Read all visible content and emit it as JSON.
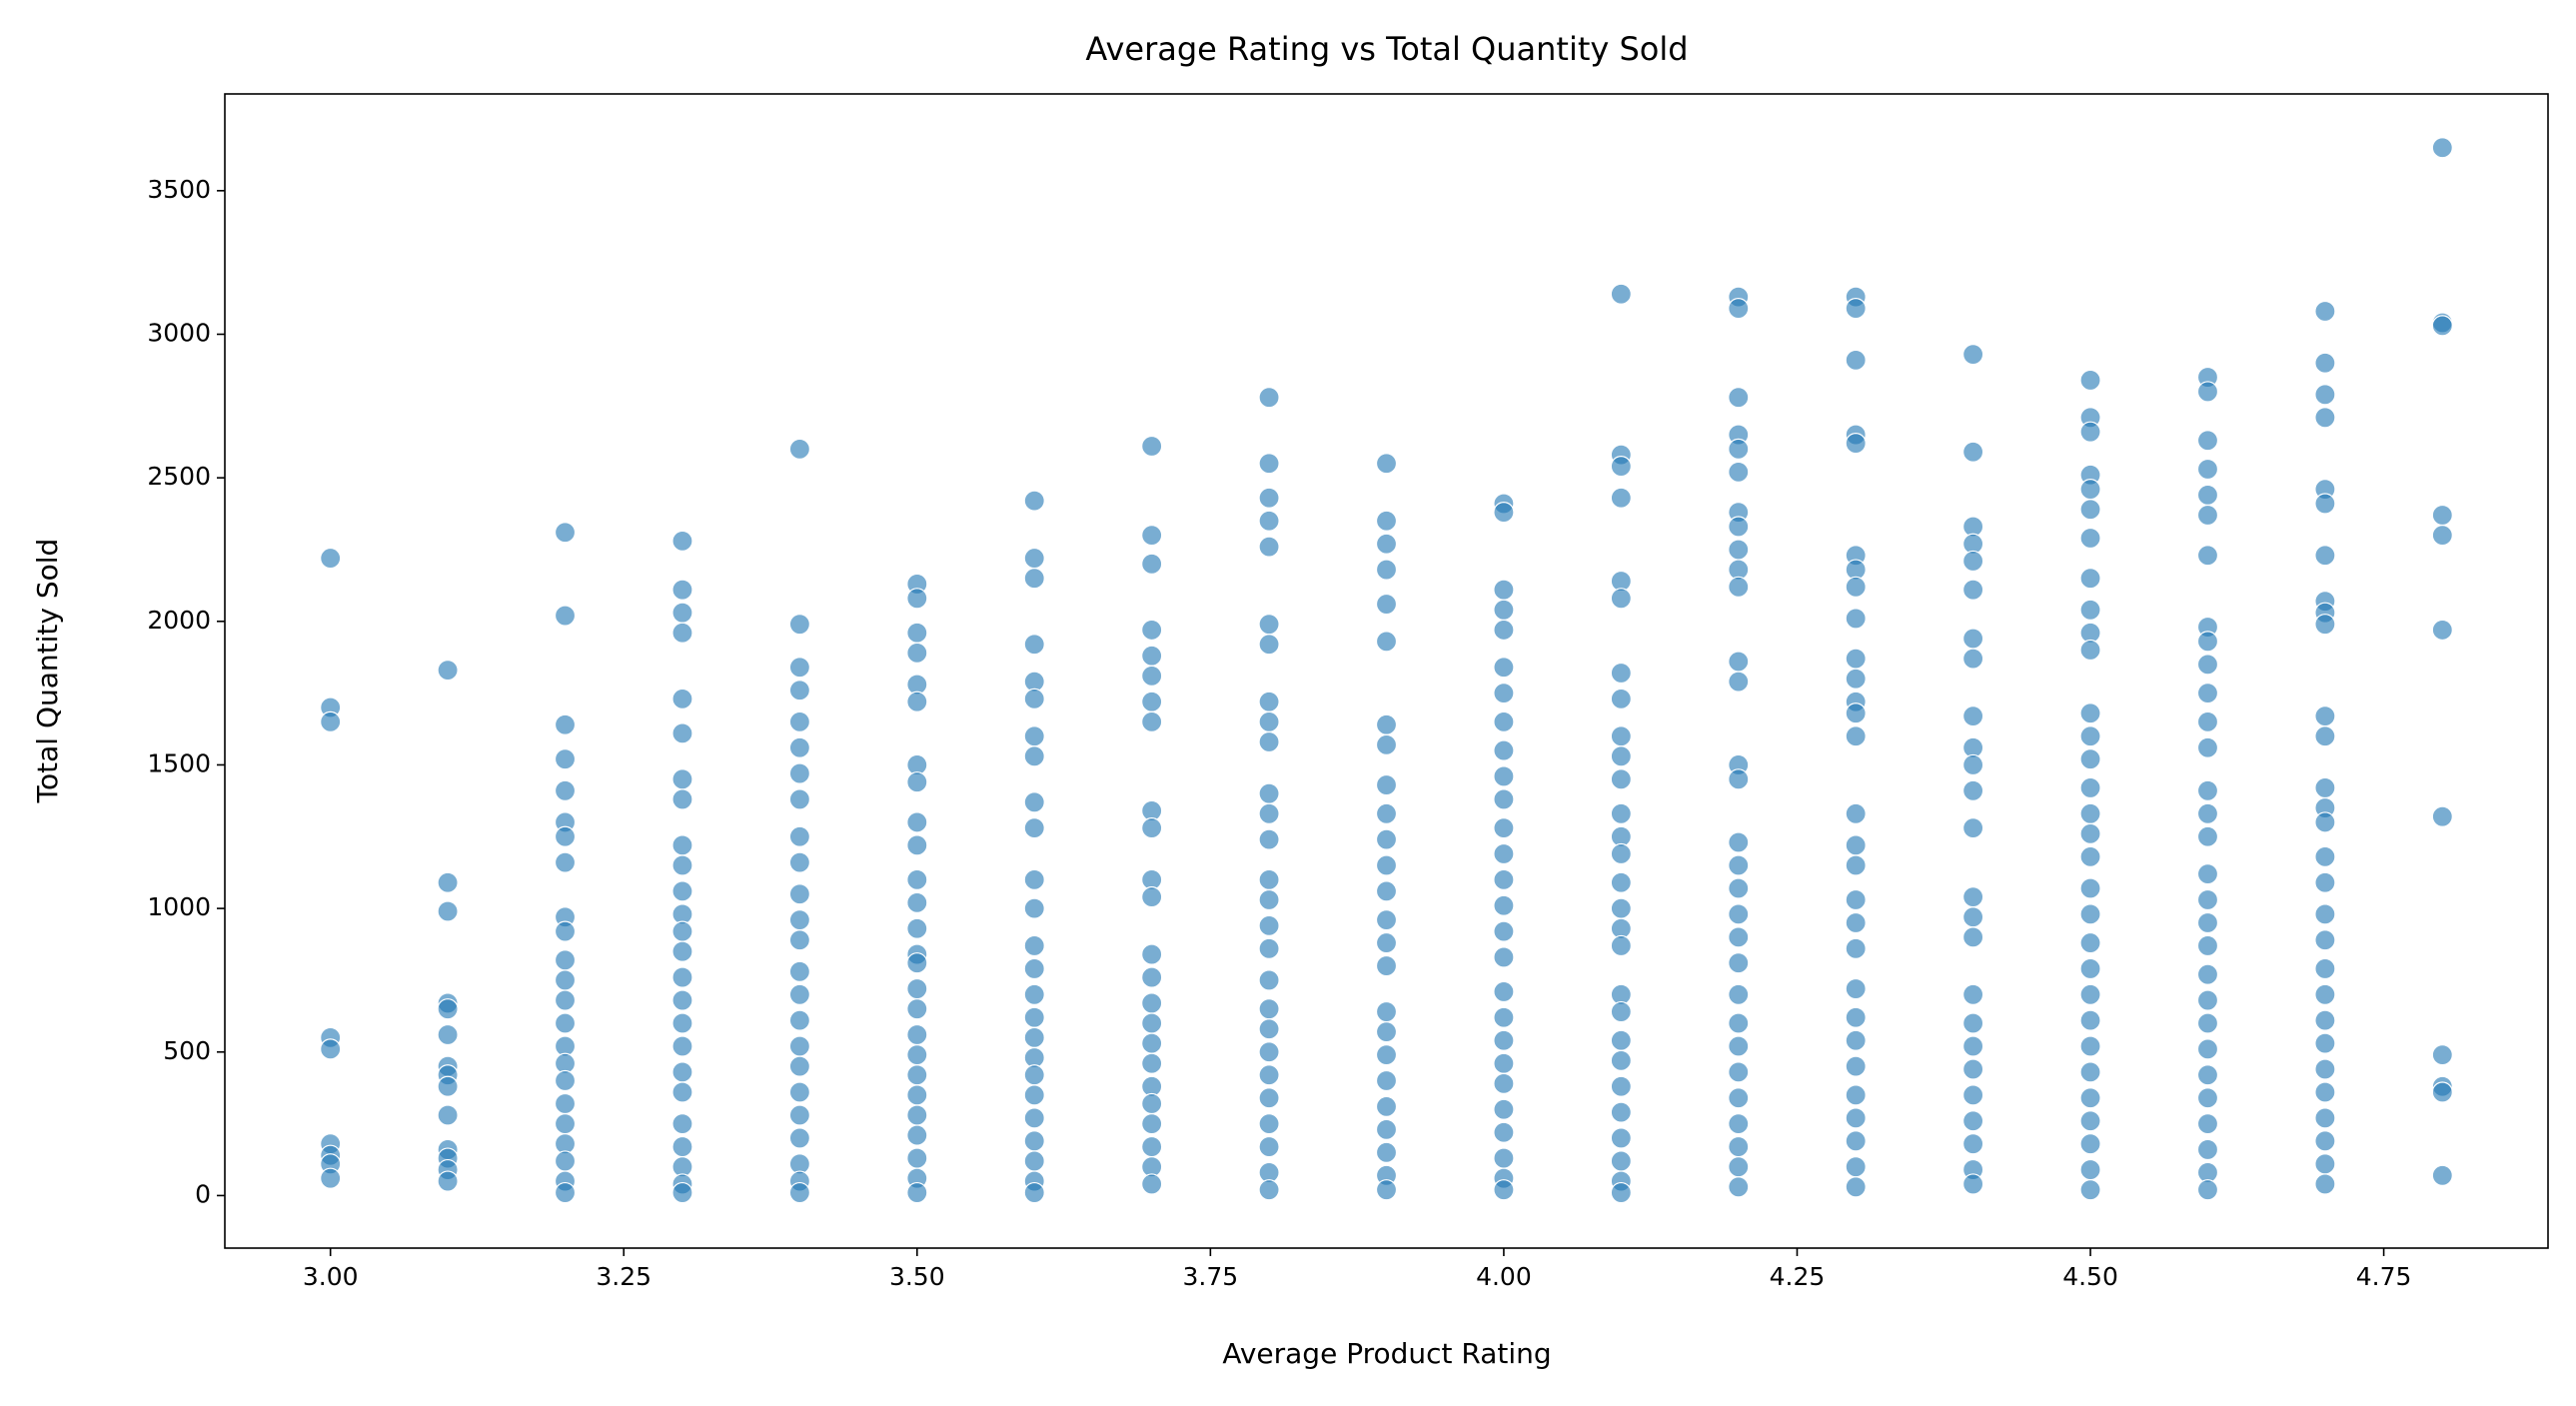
{
  "chart_data": {
    "type": "scatter",
    "title": "Average Rating vs Total Quantity Sold",
    "x_label": "Average Product Rating",
    "y_label": "Total Quantity Sold",
    "color": "#1f77b4",
    "xlim": [
      2.91,
      4.89
    ],
    "ylim": [
      -183,
      3837
    ],
    "xticks": [
      {
        "value": 3.0,
        "label": "3.00"
      },
      {
        "value": 3.25,
        "label": "3.25"
      },
      {
        "value": 3.5,
        "label": "3.50"
      },
      {
        "value": 3.75,
        "label": "3.75"
      },
      {
        "value": 4.0,
        "label": "4.00"
      },
      {
        "value": 4.25,
        "label": "4.25"
      },
      {
        "value": 4.5,
        "label": "4.50"
      },
      {
        "value": 4.75,
        "label": "4.75"
      }
    ],
    "yticks": [
      0,
      500,
      1000,
      1500,
      2000,
      2500,
      3000,
      3500
    ],
    "x": [
      3.0,
      3.0,
      3.0,
      3.0,
      3.0,
      3.0,
      3.0,
      3.0,
      3.0,
      3.1,
      3.1,
      3.1,
      3.1,
      3.1,
      3.1,
      3.1,
      3.1,
      3.1,
      3.1,
      3.1,
      3.1,
      3.1,
      3.1,
      3.2,
      3.2,
      3.2,
      3.2,
      3.2,
      3.2,
      3.2,
      3.2,
      3.2,
      3.2,
      3.2,
      3.2,
      3.2,
      3.2,
      3.2,
      3.2,
      3.2,
      3.2,
      3.2,
      3.2,
      3.2,
      3.2,
      3.2,
      3.3,
      3.3,
      3.3,
      3.3,
      3.3,
      3.3,
      3.3,
      3.3,
      3.3,
      3.3,
      3.3,
      3.3,
      3.3,
      3.3,
      3.3,
      3.3,
      3.3,
      3.3,
      3.3,
      3.3,
      3.3,
      3.3,
      3.3,
      3.3,
      3.3,
      3.4,
      3.4,
      3.4,
      3.4,
      3.4,
      3.4,
      3.4,
      3.4,
      3.4,
      3.4,
      3.4,
      3.4,
      3.4,
      3.4,
      3.4,
      3.4,
      3.4,
      3.4,
      3.4,
      3.4,
      3.4,
      3.4,
      3.4,
      3.4,
      3.5,
      3.5,
      3.5,
      3.5,
      3.5,
      3.5,
      3.5,
      3.5,
      3.5,
      3.5,
      3.5,
      3.5,
      3.5,
      3.5,
      3.5,
      3.5,
      3.5,
      3.5,
      3.5,
      3.5,
      3.5,
      3.5,
      3.5,
      3.5,
      3.5,
      3.5,
      3.6,
      3.6,
      3.6,
      3.6,
      3.6,
      3.6,
      3.6,
      3.6,
      3.6,
      3.6,
      3.6,
      3.6,
      3.6,
      3.6,
      3.6,
      3.6,
      3.6,
      3.6,
      3.6,
      3.6,
      3.6,
      3.6,
      3.6,
      3.6,
      3.6,
      3.7,
      3.7,
      3.7,
      3.7,
      3.7,
      3.7,
      3.7,
      3.7,
      3.7,
      3.7,
      3.7,
      3.7,
      3.7,
      3.7,
      3.7,
      3.7,
      3.7,
      3.7,
      3.7,
      3.7,
      3.7,
      3.7,
      3.7,
      3.7,
      3.8,
      3.8,
      3.8,
      3.8,
      3.8,
      3.8,
      3.8,
      3.8,
      3.8,
      3.8,
      3.8,
      3.8,
      3.8,
      3.8,
      3.8,
      3.8,
      3.8,
      3.8,
      3.8,
      3.8,
      3.8,
      3.8,
      3.8,
      3.8,
      3.8,
      3.8,
      3.8,
      3.9,
      3.9,
      3.9,
      3.9,
      3.9,
      3.9,
      3.9,
      3.9,
      3.9,
      3.9,
      3.9,
      3.9,
      3.9,
      3.9,
      3.9,
      3.9,
      3.9,
      3.9,
      3.9,
      3.9,
      3.9,
      3.9,
      3.9,
      3.9,
      3.9,
      4.0,
      4.0,
      4.0,
      4.0,
      4.0,
      4.0,
      4.0,
      4.0,
      4.0,
      4.0,
      4.0,
      4.0,
      4.0,
      4.0,
      4.0,
      4.0,
      4.0,
      4.0,
      4.0,
      4.0,
      4.0,
      4.0,
      4.0,
      4.0,
      4.0,
      4.0,
      4.0,
      4.1,
      4.1,
      4.1,
      4.1,
      4.1,
      4.1,
      4.1,
      4.1,
      4.1,
      4.1,
      4.1,
      4.1,
      4.1,
      4.1,
      4.1,
      4.1,
      4.1,
      4.1,
      4.1,
      4.1,
      4.1,
      4.1,
      4.1,
      4.1,
      4.1,
      4.1,
      4.1,
      4.1,
      4.2,
      4.2,
      4.2,
      4.2,
      4.2,
      4.2,
      4.2,
      4.2,
      4.2,
      4.2,
      4.2,
      4.2,
      4.2,
      4.2,
      4.2,
      4.2,
      4.2,
      4.2,
      4.2,
      4.2,
      4.2,
      4.2,
      4.2,
      4.2,
      4.2,
      4.2,
      4.2,
      4.2,
      4.2,
      4.2,
      4.3,
      4.3,
      4.3,
      4.3,
      4.3,
      4.3,
      4.3,
      4.3,
      4.3,
      4.3,
      4.3,
      4.3,
      4.3,
      4.3,
      4.3,
      4.3,
      4.3,
      4.3,
      4.3,
      4.3,
      4.3,
      4.3,
      4.3,
      4.3,
      4.3,
      4.3,
      4.3,
      4.3,
      4.3,
      4.4,
      4.4,
      4.4,
      4.4,
      4.4,
      4.4,
      4.4,
      4.4,
      4.4,
      4.4,
      4.4,
      4.4,
      4.4,
      4.4,
      4.4,
      4.4,
      4.4,
      4.4,
      4.4,
      4.4,
      4.4,
      4.4,
      4.4,
      4.4,
      4.4,
      4.5,
      4.5,
      4.5,
      4.5,
      4.5,
      4.5,
      4.5,
      4.5,
      4.5,
      4.5,
      4.5,
      4.5,
      4.5,
      4.5,
      4.5,
      4.5,
      4.5,
      4.5,
      4.5,
      4.5,
      4.5,
      4.5,
      4.5,
      4.5,
      4.5,
      4.5,
      4.5,
      4.5,
      4.5,
      4.5,
      4.5,
      4.6,
      4.6,
      4.6,
      4.6,
      4.6,
      4.6,
      4.6,
      4.6,
      4.6,
      4.6,
      4.6,
      4.6,
      4.6,
      4.6,
      4.6,
      4.6,
      4.6,
      4.6,
      4.6,
      4.6,
      4.6,
      4.6,
      4.6,
      4.6,
      4.6,
      4.6,
      4.6,
      4.6,
      4.6,
      4.6,
      4.7,
      4.7,
      4.7,
      4.7,
      4.7,
      4.7,
      4.7,
      4.7,
      4.7,
      4.7,
      4.7,
      4.7,
      4.7,
      4.7,
      4.7,
      4.7,
      4.7,
      4.7,
      4.7,
      4.7,
      4.7,
      4.7,
      4.7,
      4.7,
      4.7,
      4.7,
      4.7,
      4.7,
      4.7,
      4.8,
      4.8,
      4.8,
      4.8,
      4.8,
      4.8,
      4.8,
      4.8,
      4.8,
      4.8,
      4.8
    ],
    "y": [
      2220,
      1700,
      1650,
      550,
      510,
      180,
      140,
      110,
      60,
      1830,
      1090,
      990,
      670,
      650,
      560,
      450,
      420,
      380,
      280,
      160,
      130,
      90,
      50,
      2310,
      2020,
      1640,
      1520,
      1410,
      1300,
      1250,
      1160,
      970,
      920,
      820,
      750,
      680,
      600,
      520,
      460,
      400,
      320,
      250,
      180,
      120,
      50,
      10,
      2280,
      2110,
      2030,
      1960,
      1730,
      1610,
      1450,
      1380,
      1220,
      1150,
      1060,
      980,
      920,
      850,
      760,
      680,
      600,
      520,
      430,
      360,
      250,
      170,
      100,
      40,
      10,
      2600,
      1990,
      1840,
      1760,
      1650,
      1560,
      1470,
      1380,
      1250,
      1160,
      1050,
      960,
      890,
      780,
      700,
      610,
      520,
      450,
      360,
      280,
      200,
      110,
      50,
      10,
      2130,
      2080,
      1960,
      1890,
      1780,
      1720,
      1500,
      1440,
      1300,
      1220,
      1100,
      1020,
      930,
      840,
      810,
      720,
      650,
      560,
      490,
      420,
      350,
      280,
      210,
      130,
      60,
      10,
      2420,
      2220,
      2150,
      1920,
      1790,
      1730,
      1600,
      1530,
      1370,
      1280,
      1100,
      1000,
      870,
      790,
      700,
      620,
      550,
      480,
      420,
      350,
      270,
      190,
      120,
      50,
      10,
      2610,
      2300,
      2200,
      1970,
      1880,
      1810,
      1720,
      1650,
      1340,
      1280,
      1100,
      1040,
      840,
      760,
      670,
      600,
      530,
      460,
      380,
      320,
      250,
      170,
      100,
      40,
      2780,
      2550,
      2430,
      2350,
      2260,
      1990,
      1920,
      1720,
      1650,
      1580,
      1400,
      1330,
      1240,
      1100,
      1030,
      940,
      860,
      750,
      650,
      580,
      500,
      420,
      340,
      250,
      170,
      80,
      20,
      2550,
      2350,
      2270,
      2180,
      2060,
      1930,
      1640,
      1570,
      1430,
      1330,
      1240,
      1150,
      1060,
      960,
      880,
      800,
      640,
      570,
      490,
      400,
      310,
      230,
      150,
      70,
      20,
      2410,
      2380,
      2110,
      2040,
      1970,
      1840,
      1750,
      1650,
      1550,
      1460,
      1380,
      1280,
      1190,
      1100,
      1010,
      920,
      830,
      710,
      620,
      540,
      460,
      390,
      300,
      220,
      130,
      60,
      20,
      3140,
      2580,
      2540,
      2430,
      2140,
      2080,
      1820,
      1730,
      1600,
      1530,
      1450,
      1330,
      1250,
      1190,
      1090,
      1000,
      930,
      870,
      700,
      640,
      540,
      470,
      380,
      290,
      200,
      120,
      50,
      10,
      3130,
      3090,
      2780,
      2650,
      2600,
      2520,
      2380,
      2330,
      2250,
      2180,
      2120,
      1860,
      1790,
      1500,
      1450,
      1230,
      1150,
      1070,
      980,
      900,
      810,
      700,
      600,
      520,
      430,
      340,
      250,
      170,
      100,
      30,
      3130,
      3090,
      2910,
      2650,
      2620,
      2230,
      2180,
      2120,
      2010,
      1870,
      1800,
      1720,
      1680,
      1600,
      1330,
      1220,
      1150,
      1030,
      950,
      860,
      720,
      620,
      540,
      450,
      350,
      270,
      190,
      100,
      30,
      2930,
      2590,
      2330,
      2270,
      2210,
      2110,
      1940,
      1870,
      1670,
      1560,
      1500,
      1410,
      1280,
      1040,
      970,
      900,
      700,
      600,
      520,
      440,
      350,
      260,
      180,
      90,
      40,
      2840,
      2710,
      2660,
      2510,
      2460,
      2390,
      2290,
      2150,
      2040,
      1960,
      1900,
      1680,
      1600,
      1520,
      1420,
      1330,
      1260,
      1180,
      1070,
      980,
      880,
      790,
      700,
      610,
      520,
      430,
      340,
      260,
      180,
      90,
      20,
      2850,
      2800,
      2630,
      2530,
      2440,
      2370,
      2230,
      1980,
      1930,
      1850,
      1750,
      1650,
      1560,
      1410,
      1330,
      1250,
      1120,
      1030,
      950,
      870,
      770,
      680,
      600,
      510,
      420,
      340,
      250,
      160,
      80,
      20,
      3080,
      2900,
      2790,
      2710,
      2460,
      2410,
      2230,
      2070,
      2030,
      1990,
      1670,
      1600,
      1420,
      1350,
      1300,
      1180,
      1090,
      980,
      890,
      790,
      700,
      610,
      530,
      440,
      360,
      270,
      190,
      110,
      40,
      3650,
      3040,
      3030,
      2370,
      2300,
      1970,
      1320,
      490,
      380,
      360,
      70
    ]
  }
}
